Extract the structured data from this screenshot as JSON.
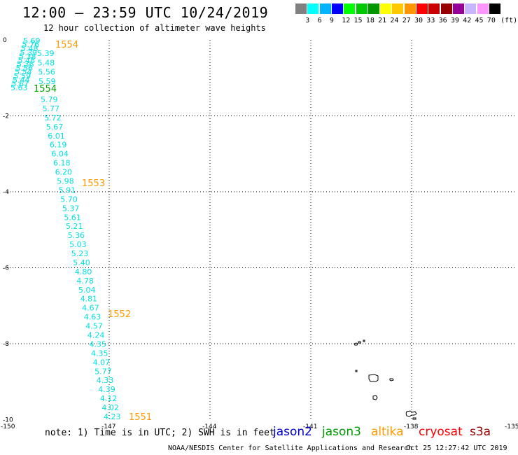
{
  "title": "12:00 — 23:59 UTC 10/24/2019",
  "subtitle": "12 hour collection of altimeter wave heights",
  "legend": {
    "colors": [
      "#808080",
      "#00ffff",
      "#00b4ff",
      "#0000ff",
      "#00ff00",
      "#00c800",
      "#009600",
      "#ffff00",
      "#ffc800",
      "#ff9600",
      "#ff0000",
      "#c80000",
      "#960000",
      "#960096",
      "#c8b4ff",
      "#ff96ff",
      "#000000"
    ],
    "labels": [
      "3",
      "6",
      "9",
      "12",
      "15",
      "18",
      "21",
      "24",
      "27",
      "30",
      "33",
      "36",
      "39",
      "42",
      "45",
      "70",
      "(ft)"
    ]
  },
  "axes": {
    "x_ticks": [
      "-150",
      "-147",
      "-144",
      "-141",
      "-138",
      "-135"
    ],
    "y_ticks": [
      "0",
      "-2",
      "-4",
      "-6",
      "-8",
      "-10"
    ]
  },
  "track": {
    "color": "#00e0e0",
    "upper_values": [
      "5.69",
      "5.76",
      "5.48",
      "5.39",
      "5.38",
      "5.48",
      "5.36",
      "5.56",
      "5.54",
      "5.59",
      "5.44",
      "5.67",
      "5.63"
    ],
    "lower_values": [
      "5.79",
      "5.77",
      "5.72",
      "5.67",
      "6.01",
      "6.19",
      "6.04",
      "6.18",
      "6.20",
      "5.98",
      "5.91",
      "5.70",
      "5.37",
      "5.61",
      "5.21",
      "5.36",
      "5.03",
      "5.23",
      "5.40",
      "4.80",
      "4.78",
      "5.04",
      "4.81",
      "4.67",
      "4.63",
      "4.57",
      "4.24",
      "4.35",
      "4.35",
      "4.07",
      "5.77",
      "4.33",
      "4.39",
      "4.12",
      "4.02",
      "4.23"
    ]
  },
  "time_labels": [
    {
      "text": "1554",
      "color": "#ff9900"
    },
    {
      "text": "1554",
      "color": "#00a000"
    },
    {
      "text": "1553",
      "color": "#ff9900"
    },
    {
      "text": "1552",
      "color": "#ff9900"
    },
    {
      "text": "1551",
      "color": "#ff9900"
    }
  ],
  "note": "note: 1) Time is in UTC; 2) SWH is in feet",
  "satellites": [
    {
      "name": "jason2",
      "color": "#0000cc"
    },
    {
      "name": "jason3",
      "color": "#009900"
    },
    {
      "name": "altika",
      "color": "#ff9900"
    },
    {
      "name": "cryosat",
      "color": "#ff0000"
    },
    {
      "name": "s3a",
      "color": "#990000"
    }
  ],
  "credit": "NOAA/NESDIS Center for Satellite Applications and Research",
  "timestamp": "Oct 25 12:27:42 UTC 2019"
}
